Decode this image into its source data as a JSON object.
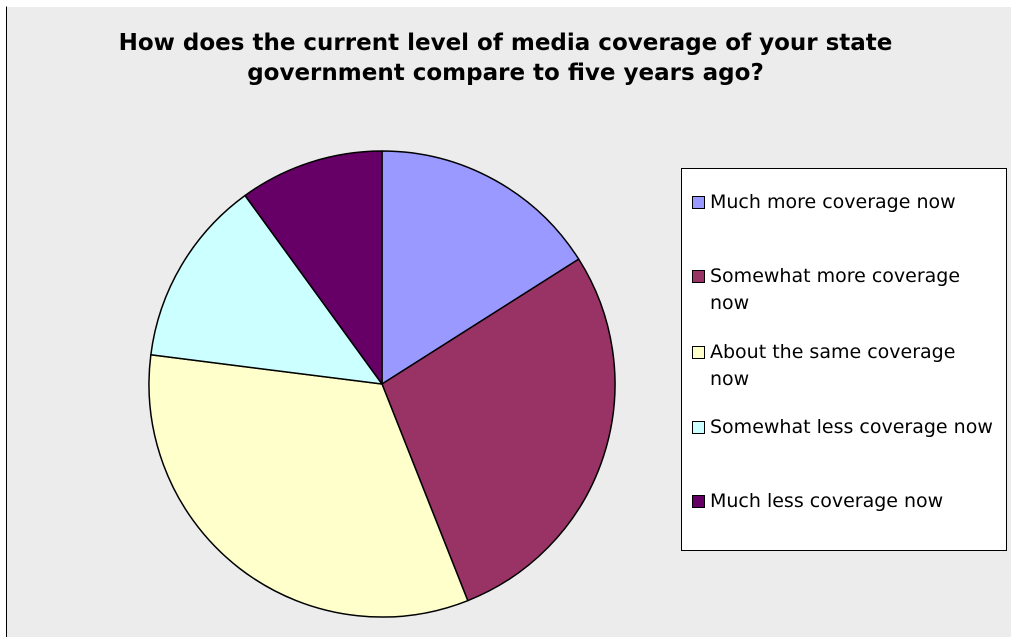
{
  "chart_data": {
    "type": "pie",
    "title_lines": [
      "How does the current level of media coverage of your state",
      "government compare to five years ago?"
    ],
    "legend_position": "right",
    "slices": [
      {
        "label": "Much more coverage now",
        "value": 16,
        "color": "#9999ff"
      },
      {
        "label": "Somewhat more coverage now",
        "value": 28,
        "color": "#993366"
      },
      {
        "label": "About the same coverage now",
        "value": 33,
        "color": "#ffffcc"
      },
      {
        "label": "Somewhat less coverage now",
        "value": 13,
        "color": "#ccffff"
      },
      {
        "label": "Much less coverage now",
        "value": 10,
        "color": "#660066"
      }
    ]
  }
}
